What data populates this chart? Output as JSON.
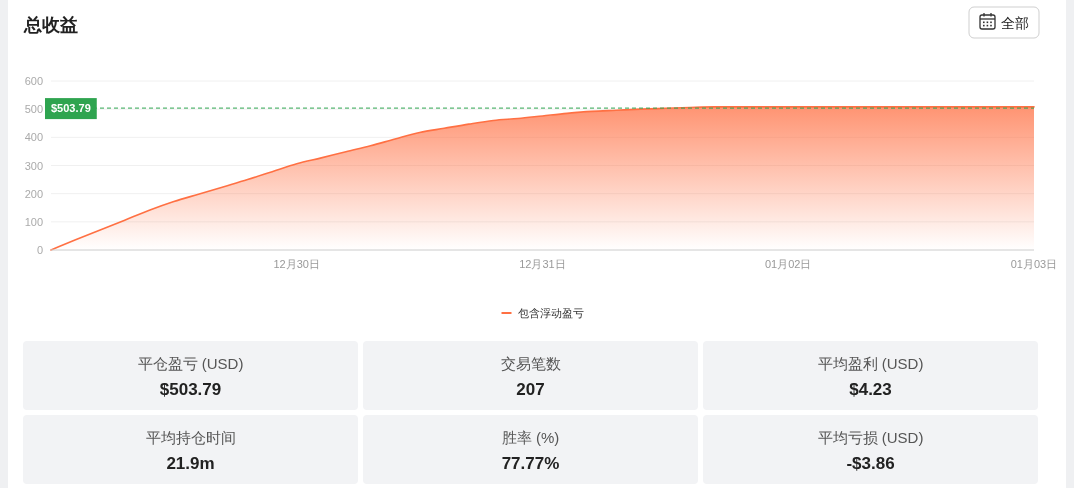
{
  "chart_data": [
    {
      "type": "area",
      "title": "总收益",
      "annotations": [
        "全部"
      ],
      "categories": [
        null,
        null,
        null,
        null,
        null,
        null,
        null,
        null,
        null,
        null,
        "12月30日",
        null,
        null,
        null,
        null,
        null,
        null,
        null,
        null,
        null,
        "12月31日",
        null,
        null,
        null,
        null,
        null,
        null,
        null,
        null,
        null,
        "01月02日",
        null,
        null,
        null,
        null,
        null,
        null,
        null,
        null,
        null,
        "01月03日"
      ],
      "series": [
        {
          "name": "包含浮动盈亏",
          "color": "#ff7043",
          "values": [
            0,
            36,
            71,
            106,
            141,
            172,
            198,
            224,
            250,
            278,
            306,
            327,
            349,
            370,
            394,
            417,
            432,
            447,
            460,
            467,
            476,
            485,
            492,
            496,
            500,
            503,
            506,
            508,
            508,
            508,
            508,
            508,
            508,
            508,
            508,
            508,
            508,
            508,
            508,
            508,
            508
          ]
        }
      ],
      "ylim": [
        0,
        600
      ],
      "yticks": [
        0,
        100,
        200,
        300,
        400,
        500,
        600
      ],
      "grid": "y",
      "legend": "bottom",
      "ref_lines": [
        {
          "axis": "y",
          "value": 503.79,
          "label": "$503.79",
          "color": "#2ea44f",
          "line_style": "dashed"
        }
      ]
    },
    {
      "type": "other",
      "categories": [
        "平仓盈亏 (USD)",
        "交易笔数",
        "平均盈利 (USD)",
        "平均持仓时间",
        "胜率 (%)",
        "平均亏损 (USD)"
      ],
      "value_labels": [
        "$503.79",
        "207",
        "$4.23",
        "21.9m",
        "77.77%",
        "-$3.86"
      ],
      "colors": [
        "#f2f3f5",
        "#f2f3f5",
        "#f2f3f5",
        "#f2f3f5",
        "#f2f3f5",
        "#f2f3f5"
      ]
    }
  ]
}
